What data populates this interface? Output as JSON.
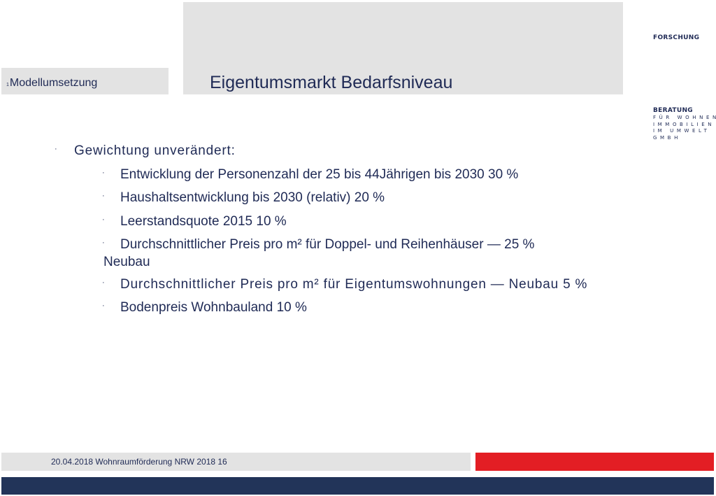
{
  "header": {
    "section_label": "Modellumsetzung",
    "section_prefix": "1",
    "title": "Eigentumsmarkt Bedarfsniveau"
  },
  "branding": {
    "research": "FORSCHUNG",
    "name": "BERATUNG",
    "line1": "FÜR WOHNEN",
    "line2": "IMMOBILIEN",
    "line3": "IM UMWELT",
    "line4": "GMBH"
  },
  "content": {
    "bullet_char": "·",
    "heading": "Gewichtung unverändert:",
    "items": [
      "Entwicklung der Personenzahl der 25 bis 44Jährigen bis 2030 30 %",
      "Haushaltsentwicklung bis 2030 (relativ) 20 %",
      "Leerstandsquote 2015 10 %",
      "Durchschnittlicher Preis pro m² für Doppel- und Reihenhäuser — 25 %",
      "Durchschnittlicher Preis pro m² für Eigentumswohnungen — Neubau 5 %",
      "Bodenpreis Wohnbauland 10 %"
    ],
    "item4_wrap": "Neubau"
  },
  "footer": {
    "text": "20.04.2018 Wohnraumförderung NRW 2018 16"
  },
  "colors": {
    "navy": "#223459",
    "text": "#1f2a55",
    "red": "#e31e24",
    "gray_band": "#e3e3e3"
  }
}
